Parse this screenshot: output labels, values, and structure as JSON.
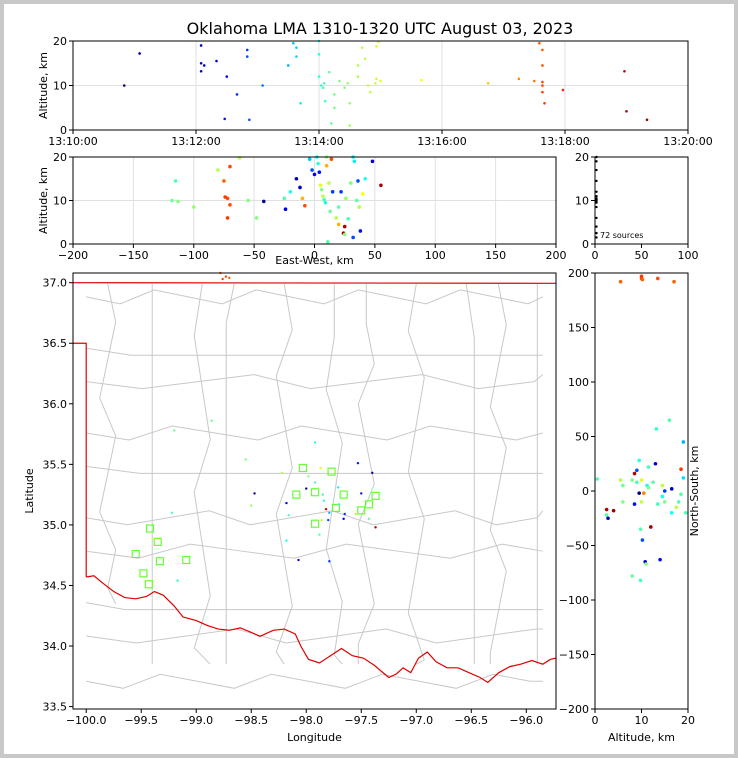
{
  "title": "Oklahoma LMA 1310-1320 UTC August 03, 2023",
  "chart_data": [
    {
      "id": "time-altitude",
      "type": "scatter",
      "ylabel": "Altitude, km",
      "xlim": [
        "13:10:00",
        "13:20:00"
      ],
      "ylim": [
        0,
        20
      ],
      "x_ticks": [
        "13:10:00",
        "13:12:00",
        "13:14:00",
        "13:16:00",
        "13:18:00",
        "13:20:00"
      ],
      "y_ticks": [
        "0",
        "10",
        "20"
      ],
      "grid": true,
      "points": [
        [
          "13:10:50",
          10.0,
          0.0
        ],
        [
          "13:11:05",
          17.2,
          0.02
        ],
        [
          "13:12:05",
          19.0,
          0.05
        ],
        [
          "13:12:05",
          15.0,
          0.06
        ],
        [
          "13:12:05",
          13.2,
          0.08
        ],
        [
          "13:12:08",
          14.5,
          0.1
        ],
        [
          "13:12:20",
          15.5,
          0.1
        ],
        [
          "13:12:30",
          12.0,
          0.13
        ],
        [
          "13:12:28",
          2.5,
          0.14
        ],
        [
          "13:12:40",
          8.0,
          0.16
        ],
        [
          "13:12:50",
          18.0,
          0.18
        ],
        [
          "13:12:50",
          16.5,
          0.2
        ],
        [
          "13:12:52",
          2.3,
          0.21
        ],
        [
          "13:13:05",
          10.0,
          0.24
        ],
        [
          "13:13:30",
          14.5,
          0.3
        ],
        [
          "13:13:35",
          19.5,
          0.32
        ],
        [
          "13:13:38",
          18.5,
          0.33
        ],
        [
          "13:13:38",
          16.5,
          0.34
        ],
        [
          "13:13:42",
          6.0,
          0.36
        ],
        [
          "13:14:00",
          20.0,
          0.38
        ],
        [
          "13:14:00",
          17.0,
          0.4
        ],
        [
          "13:14:00",
          12.0,
          0.42
        ],
        [
          "13:14:02",
          10.0,
          0.43
        ],
        [
          "13:14:04",
          9.5,
          0.44
        ],
        [
          "13:14:05",
          10.5,
          0.45
        ],
        [
          "13:14:06",
          6.5,
          0.44
        ],
        [
          "13:14:10",
          13.0,
          0.47
        ],
        [
          "13:14:12",
          1.5,
          0.48
        ],
        [
          "13:14:15",
          5.0,
          0.49
        ],
        [
          "13:14:15",
          8.0,
          0.49
        ],
        [
          "13:14:20",
          11.0,
          0.5
        ],
        [
          "13:14:25",
          9.5,
          0.51
        ],
        [
          "13:14:28",
          10.5,
          0.52
        ],
        [
          "13:14:30",
          6.0,
          0.52
        ],
        [
          "13:14:30",
          1.0,
          0.53
        ],
        [
          "13:14:38",
          12.0,
          0.54
        ],
        [
          "13:14:38",
          14.5,
          0.55
        ],
        [
          "13:14:42",
          18.5,
          0.56
        ],
        [
          "13:14:45",
          16.0,
          0.56
        ],
        [
          "13:14:48",
          10.0,
          0.57
        ],
        [
          "13:14:50",
          8.5,
          0.57
        ],
        [
          "13:14:55",
          10.5,
          0.57
        ],
        [
          "13:14:56",
          11.5,
          0.58
        ],
        [
          "13:14:56",
          18.8,
          0.58
        ],
        [
          "13:14:58",
          19.8,
          0.58
        ],
        [
          "13:15:00",
          11.0,
          0.59
        ],
        [
          "13:15:40",
          11.2,
          0.62
        ],
        [
          "13:16:45",
          10.5,
          0.68
        ],
        [
          "13:17:15",
          11.5,
          0.74
        ],
        [
          "13:17:30",
          11.0,
          0.76
        ],
        [
          "13:17:35",
          19.5,
          0.78
        ],
        [
          "13:17:38",
          18.0,
          0.79
        ],
        [
          "13:17:38",
          14.5,
          0.8
        ],
        [
          "13:17:38",
          10.8,
          0.8
        ],
        [
          "13:17:38",
          10.0,
          0.81
        ],
        [
          "13:17:38",
          8.5,
          0.82
        ],
        [
          "13:17:40",
          6.0,
          0.82
        ],
        [
          "13:17:58",
          9.0,
          0.84
        ],
        [
          "13:18:58",
          13.2,
          0.93
        ],
        [
          "13:19:00",
          4.2,
          0.95
        ],
        [
          "13:19:20",
          2.3,
          0.98
        ]
      ]
    },
    {
      "id": "eastwest-altitude",
      "type": "scatter",
      "xlabel": "East-West, km",
      "ylabel": "Altitude, km",
      "xlim": [
        -200,
        200
      ],
      "ylim": [
        0,
        20
      ],
      "x_ticks": [
        "−200",
        "−150",
        "−100",
        "−50",
        "0",
        "50",
        "100",
        "150",
        "200"
      ],
      "y_ticks": [
        "0",
        "10",
        "20"
      ],
      "grid": true,
      "points": [
        [
          -115,
          14.5,
          0.45
        ],
        [
          -118,
          10.0,
          0.48
        ],
        [
          -113,
          9.8,
          0.5
        ],
        [
          -100,
          8.5,
          0.52
        ],
        [
          -80,
          17.0,
          0.55
        ],
        [
          -75,
          14.5,
          0.78
        ],
        [
          -70,
          17.8,
          0.8
        ],
        [
          -72,
          10.5,
          0.8
        ],
        [
          -74,
          10.8,
          0.82
        ],
        [
          -70,
          9.0,
          0.8
        ],
        [
          -72,
          6.0,
          0.82
        ],
        [
          -62,
          19.8,
          0.56
        ],
        [
          -55,
          10.0,
          0.5
        ],
        [
          -48,
          6.0,
          0.5
        ],
        [
          -42,
          9.8,
          0.0
        ],
        [
          -25,
          10.5,
          0.45
        ],
        [
          -24,
          8.0,
          0.1
        ],
        [
          -20,
          12.0,
          0.4
        ],
        [
          -15,
          15.0,
          0.05
        ],
        [
          -12,
          13.0,
          0.08
        ],
        [
          -10,
          10.5,
          0.7
        ],
        [
          -8,
          8.8,
          0.8
        ],
        [
          -4,
          19.5,
          0.32
        ],
        [
          -2,
          17.0,
          0.2
        ],
        [
          0,
          16.0,
          0.1
        ],
        [
          2,
          20.0,
          0.38
        ],
        [
          3,
          18.5,
          0.42
        ],
        [
          4,
          16.5,
          0.14
        ],
        [
          5,
          13.5,
          0.6
        ],
        [
          6,
          12.5,
          0.5
        ],
        [
          7,
          11.0,
          0.56
        ],
        [
          8,
          10.2,
          0.44
        ],
        [
          9,
          9.5,
          0.4
        ],
        [
          10,
          20.0,
          0.52
        ],
        [
          10,
          18.0,
          0.7
        ],
        [
          12,
          14.0,
          0.56
        ],
        [
          13,
          7.5,
          0.48
        ],
        [
          11,
          0.5,
          0.45
        ],
        [
          14,
          19.5,
          0.8
        ],
        [
          15,
          12.0,
          0.18
        ],
        [
          18,
          6.0,
          0.55
        ],
        [
          20,
          4.5,
          0.7
        ],
        [
          20,
          8.5,
          0.46
        ],
        [
          22,
          12.0,
          0.18
        ],
        [
          24,
          2.5,
          0.98
        ],
        [
          25,
          2.2,
          0.5
        ],
        [
          25,
          4.0,
          0.95
        ],
        [
          26,
          10.5,
          0.52
        ],
        [
          28,
          5.8,
          0.44
        ],
        [
          30,
          14.0,
          0.5
        ],
        [
          32,
          1.5,
          0.2
        ],
        [
          32,
          20.0,
          0.38
        ],
        [
          33,
          19.0,
          0.36
        ],
        [
          35,
          10.0,
          0.46
        ],
        [
          36,
          14.5,
          0.2
        ],
        [
          37,
          8.5,
          0.55
        ],
        [
          38,
          3.0,
          0.14
        ],
        [
          40,
          11.5,
          0.62
        ],
        [
          42,
          15.0,
          0.4
        ],
        [
          48,
          19.0,
          0.1
        ],
        [
          55,
          13.5,
          0.96
        ]
      ]
    },
    {
      "id": "histogram",
      "type": "scatter",
      "xlim": [
        0,
        100
      ],
      "ylim": [
        0,
        20
      ],
      "x_ticks": [
        "0",
        "50",
        "100"
      ],
      "y_ticks": [
        "0",
        "10",
        "20"
      ],
      "annotation": "72 sources",
      "points": [
        [
          0,
          20
        ],
        [
          0,
          19
        ],
        [
          0,
          17
        ],
        [
          0,
          14.5
        ],
        [
          0,
          12
        ],
        [
          0,
          11
        ],
        [
          0,
          10.5
        ],
        [
          0,
          10.2
        ],
        [
          0,
          10.0
        ],
        [
          0,
          9.8
        ],
        [
          0,
          9.5
        ],
        [
          0,
          8.5
        ],
        [
          0,
          6
        ],
        [
          0,
          4
        ],
        [
          0,
          2.5
        ],
        [
          0,
          1.5
        ]
      ]
    },
    {
      "id": "plan-view",
      "type": "scatter",
      "xlabel": "Longitude",
      "ylabel": "Latitude",
      "xlim": [
        -100.12,
        -95.73
      ],
      "ylim": [
        33.48,
        37.08
      ],
      "x_ticks": [
        "−100.0",
        "−99.5",
        "−99.0",
        "−98.5",
        "−98.0",
        "−97.5",
        "−97.0",
        "−96.5",
        "−96.0"
      ],
      "y_ticks": [
        "33.5",
        "34.0",
        "34.5",
        "35.0",
        "35.5",
        "36.0",
        "36.5",
        "37.0"
      ],
      "stations": [
        [
          -99.55,
          34.76
        ],
        [
          -99.48,
          34.6
        ],
        [
          -99.43,
          34.51
        ],
        [
          -99.42,
          34.97
        ],
        [
          -99.35,
          34.86
        ],
        [
          -99.33,
          34.7
        ],
        [
          -99.09,
          34.71
        ],
        [
          -98.09,
          35.25
        ],
        [
          -98.03,
          35.47
        ],
        [
          -97.92,
          35.27
        ],
        [
          -97.92,
          35.01
        ],
        [
          -97.77,
          35.44
        ],
        [
          -97.73,
          35.14
        ],
        [
          -97.66,
          35.25
        ],
        [
          -97.5,
          35.12
        ],
        [
          -97.43,
          35.17
        ],
        [
          -97.37,
          35.24
        ]
      ],
      "points": [
        [
          -98.78,
          37.08,
          0.78
        ],
        [
          -98.73,
          37.05,
          0.8
        ],
        [
          -98.7,
          37.04,
          0.78
        ],
        [
          -98.76,
          37.03,
          0.82
        ],
        [
          -99.2,
          35.78,
          0.48
        ],
        [
          -98.86,
          35.86,
          0.48
        ],
        [
          -98.55,
          35.54,
          0.5
        ],
        [
          -98.22,
          35.43,
          0.55
        ],
        [
          -98.47,
          35.26,
          0.0
        ],
        [
          -98.5,
          35.16,
          0.52
        ],
        [
          -98.18,
          35.18,
          0.1
        ],
        [
          -98.16,
          35.08,
          0.45
        ],
        [
          -98.18,
          34.87,
          0.4
        ],
        [
          -98.07,
          34.71,
          0.1
        ],
        [
          -97.92,
          35.68,
          0.4
        ],
        [
          -97.98,
          35.4,
          0.5
        ],
        [
          -98.0,
          35.3,
          0.05
        ],
        [
          -97.92,
          35.35,
          0.45
        ],
        [
          -97.89,
          35.3,
          0.52
        ],
        [
          -97.87,
          35.47,
          0.6
        ],
        [
          -97.85,
          35.25,
          0.44
        ],
        [
          -97.84,
          35.2,
          0.42
        ],
        [
          -97.82,
          35.13,
          0.95
        ],
        [
          -97.8,
          35.04,
          0.2
        ],
        [
          -97.79,
          35.1,
          0.3
        ],
        [
          -97.86,
          35.04,
          0.56
        ],
        [
          -97.88,
          34.92,
          0.46
        ],
        [
          -97.79,
          34.7,
          0.18
        ],
        [
          -97.71,
          35.31,
          0.38
        ],
        [
          -97.7,
          35.17,
          0.42
        ],
        [
          -97.65,
          35.09,
          0.18
        ],
        [
          -97.66,
          35.05,
          0.1
        ],
        [
          -97.55,
          35.09,
          0.56
        ],
        [
          -97.53,
          35.51,
          0.14
        ],
        [
          -97.5,
          35.26,
          0.14
        ],
        [
          -97.43,
          35.05,
          0.48
        ],
        [
          -97.4,
          35.43,
          0.06
        ],
        [
          -97.37,
          34.98,
          0.96
        ],
        [
          -99.17,
          34.54,
          0.42
        ],
        [
          -99.22,
          35.1,
          0.45
        ]
      ]
    },
    {
      "id": "ns-altitude",
      "type": "scatter",
      "xlabel": "Altitude, km",
      "ylabel": "North-South, km",
      "xlim": [
        0,
        20
      ],
      "ylim": [
        -200,
        200
      ],
      "x_ticks": [
        "0",
        "10",
        "20"
      ],
      "y_ticks": [
        "−200",
        "−150",
        "−100",
        "−50",
        "0",
        "50",
        "100",
        "150",
        "200"
      ],
      "points": [
        [
          0.5,
          11,
          0.45
        ],
        [
          2.5,
          -22,
          0.46
        ],
        [
          2.8,
          -25,
          0.05
        ],
        [
          2.5,
          -17,
          0.95
        ],
        [
          4.0,
          -18,
          0.98
        ],
        [
          5.5,
          192,
          0.78
        ],
        [
          6.0,
          5,
          0.48
        ],
        [
          5.5,
          10,
          0.55
        ],
        [
          6.0,
          -10,
          0.5
        ],
        [
          8.0,
          10,
          0.5
        ],
        [
          8.0,
          -78,
          0.48
        ],
        [
          8.5,
          16,
          0.95
        ],
        [
          8.5,
          -12,
          0.14
        ],
        [
          9.0,
          19,
          0.2
        ],
        [
          9.0,
          8,
          0.44
        ],
        [
          9.5,
          28,
          0.42
        ],
        [
          9.5,
          -2,
          0.0
        ],
        [
          9.8,
          -35,
          0.46
        ],
        [
          9.8,
          -82,
          0.44
        ],
        [
          10.0,
          195,
          0.8
        ],
        [
          10.0,
          197,
          0.82
        ],
        [
          10.2,
          194,
          0.78
        ],
        [
          10.0,
          10,
          0.6
        ],
        [
          10.0,
          -10,
          0.56
        ],
        [
          10.2,
          -45,
          0.2
        ],
        [
          10.5,
          -2,
          0.75
        ],
        [
          10.8,
          -65,
          0.1
        ],
        [
          11.0,
          -67,
          0.52
        ],
        [
          11.2,
          5,
          0.4
        ],
        [
          11.5,
          22,
          0.44
        ],
        [
          11.5,
          3,
          0.5
        ],
        [
          12.0,
          -33,
          0.96
        ],
        [
          12.5,
          8,
          0.46
        ],
        [
          13.0,
          25,
          0.1
        ],
        [
          13.5,
          195,
          0.8
        ],
        [
          13.2,
          57,
          0.42
        ],
        [
          13.5,
          -12,
          0.44
        ],
        [
          14.0,
          -63,
          0.14
        ],
        [
          14.5,
          5,
          0.56
        ],
        [
          14.5,
          -5,
          0.4
        ],
        [
          15.0,
          0,
          0.18
        ],
        [
          15.0,
          -10,
          0.5
        ],
        [
          16.0,
          65,
          0.45
        ],
        [
          16.5,
          2,
          0.05
        ],
        [
          16.5,
          -20,
          0.38
        ],
        [
          17.0,
          192,
          0.78
        ],
        [
          17.5,
          -15,
          0.55
        ],
        [
          18.0,
          -10,
          0.45
        ],
        [
          18.5,
          20,
          0.82
        ],
        [
          18.5,
          -3,
          0.46
        ],
        [
          19.0,
          45,
          0.3
        ],
        [
          19.5,
          -20,
          0.45
        ],
        [
          19.0,
          12,
          0.35
        ]
      ]
    }
  ]
}
